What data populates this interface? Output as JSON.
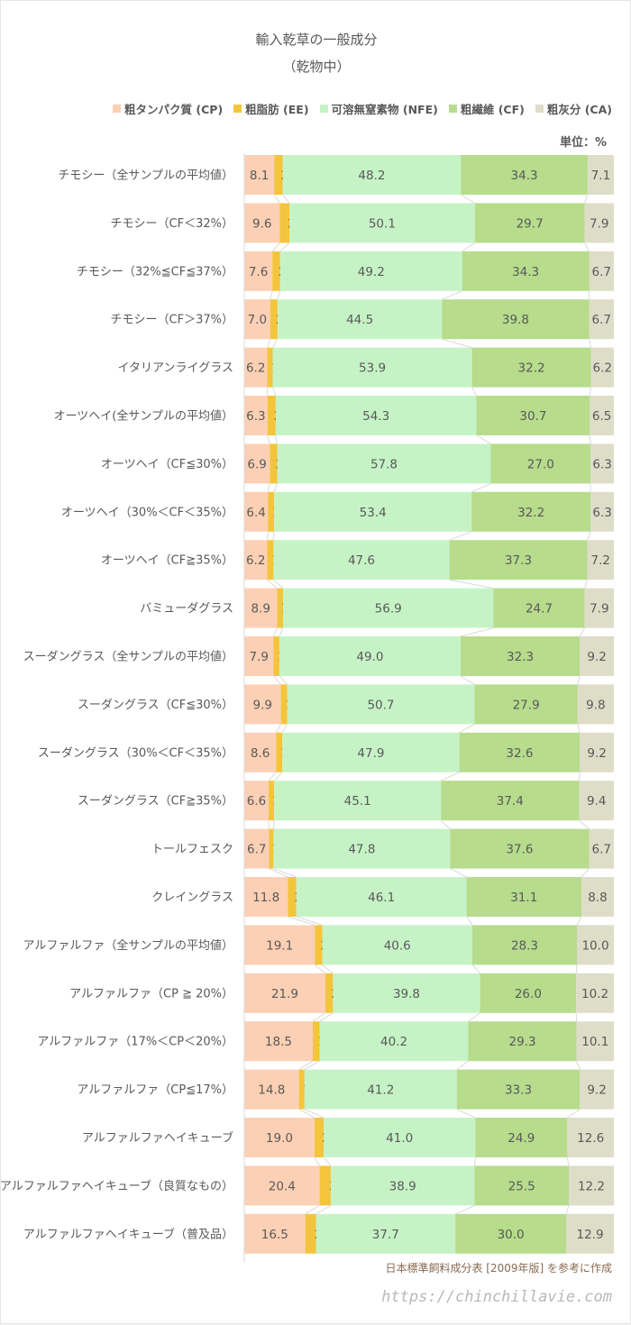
{
  "chart_data": {
    "type": "bar",
    "orientation": "horizontal",
    "stacked": "100%",
    "title": "輸入乾草の一般成分",
    "subtitle": "（乾物中）",
    "unit_label": "単位：%",
    "legend_placement": "top",
    "source_note": "日本標準飼料成分表 [2009年版] を参考に作成",
    "watermark": "https://chinchillavie.com",
    "grid": false,
    "categories": [
      "チモシー（全サンプルの平均値）",
      "チモシー（CF＜32%）",
      "チモシー（32%≦CF≦37%）",
      "チモシー（CF＞37%）",
      "イタリアンライグラス",
      "オーツヘイ(全サンプルの平均値）",
      "オーツヘイ（CF≦30%）",
      "オーツヘイ（30%＜CF＜35%）",
      "オーツヘイ（CF≧35%）",
      "バミューダグラス",
      "スーダングラス（全サンプルの平均値）",
      "スーダングラス（CF≦30%）",
      "スーダングラス（30%＜CF＜35%）",
      "スーダングラス（CF≧35%）",
      "トールフェスク",
      "クレイングラス",
      "アルファルファ（全サンプルの平均値）",
      "アルファルファ（CP ≧ 20%）",
      "アルファルファ（17%＜CP＜20%）",
      "アルファルファ（CP≦17%）",
      "アルファルファヘイキューブ",
      "アルファルファヘイキューブ（良質なもの）",
      "アルファルファヘイキューブ（普及品）"
    ],
    "series": [
      {
        "name": "粗タンパク質 (CP)",
        "color": "#fcd0b4",
        "values": [
          8.1,
          9.6,
          7.6,
          7.0,
          6.2,
          6.3,
          6.9,
          6.4,
          6.2,
          8.9,
          7.9,
          9.9,
          8.6,
          6.6,
          6.7,
          11.8,
          19.1,
          21.9,
          18.5,
          14.8,
          19.0,
          20.4,
          16.5
        ]
      },
      {
        "name": "粗脂肪 (EE)",
        "color": "#f4c43c",
        "values": [
          2.3,
          2.6,
          2.1,
          2.0,
          1.5,
          2.2,
          2.0,
          1.7,
          1.7,
          1.6,
          1.6,
          1.7,
          1.7,
          1.5,
          1.2,
          2.3,
          2.0,
          2.1,
          1.9,
          1.5,
          2.5,
          3.0,
          2.9
        ]
      },
      {
        "name": "可溶無窒素物 (NFE)",
        "color": "#c6f3c6",
        "values": [
          48.2,
          50.1,
          49.2,
          44.5,
          53.9,
          54.3,
          57.8,
          53.4,
          47.6,
          56.9,
          49.0,
          50.7,
          47.9,
          45.1,
          47.8,
          46.1,
          40.6,
          39.8,
          40.2,
          41.2,
          41.0,
          38.9,
          37.7
        ]
      },
      {
        "name": "粗繊維 (CF)",
        "color": "#b6dc8c",
        "values": [
          34.3,
          29.7,
          34.3,
          39.8,
          32.2,
          30.7,
          27.0,
          32.2,
          37.3,
          24.7,
          32.3,
          27.9,
          32.6,
          37.4,
          37.6,
          31.1,
          28.3,
          26.0,
          29.3,
          33.3,
          24.9,
          25.5,
          30.0
        ]
      },
      {
        "name": "粗灰分 (CA)",
        "color": "#deddc8",
        "values": [
          7.1,
          7.9,
          6.7,
          6.7,
          6.2,
          6.5,
          6.3,
          6.3,
          7.2,
          7.9,
          9.2,
          9.8,
          9.2,
          9.4,
          6.7,
          8.8,
          10.0,
          10.2,
          10.1,
          9.2,
          12.6,
          12.2,
          12.9
        ]
      }
    ]
  }
}
